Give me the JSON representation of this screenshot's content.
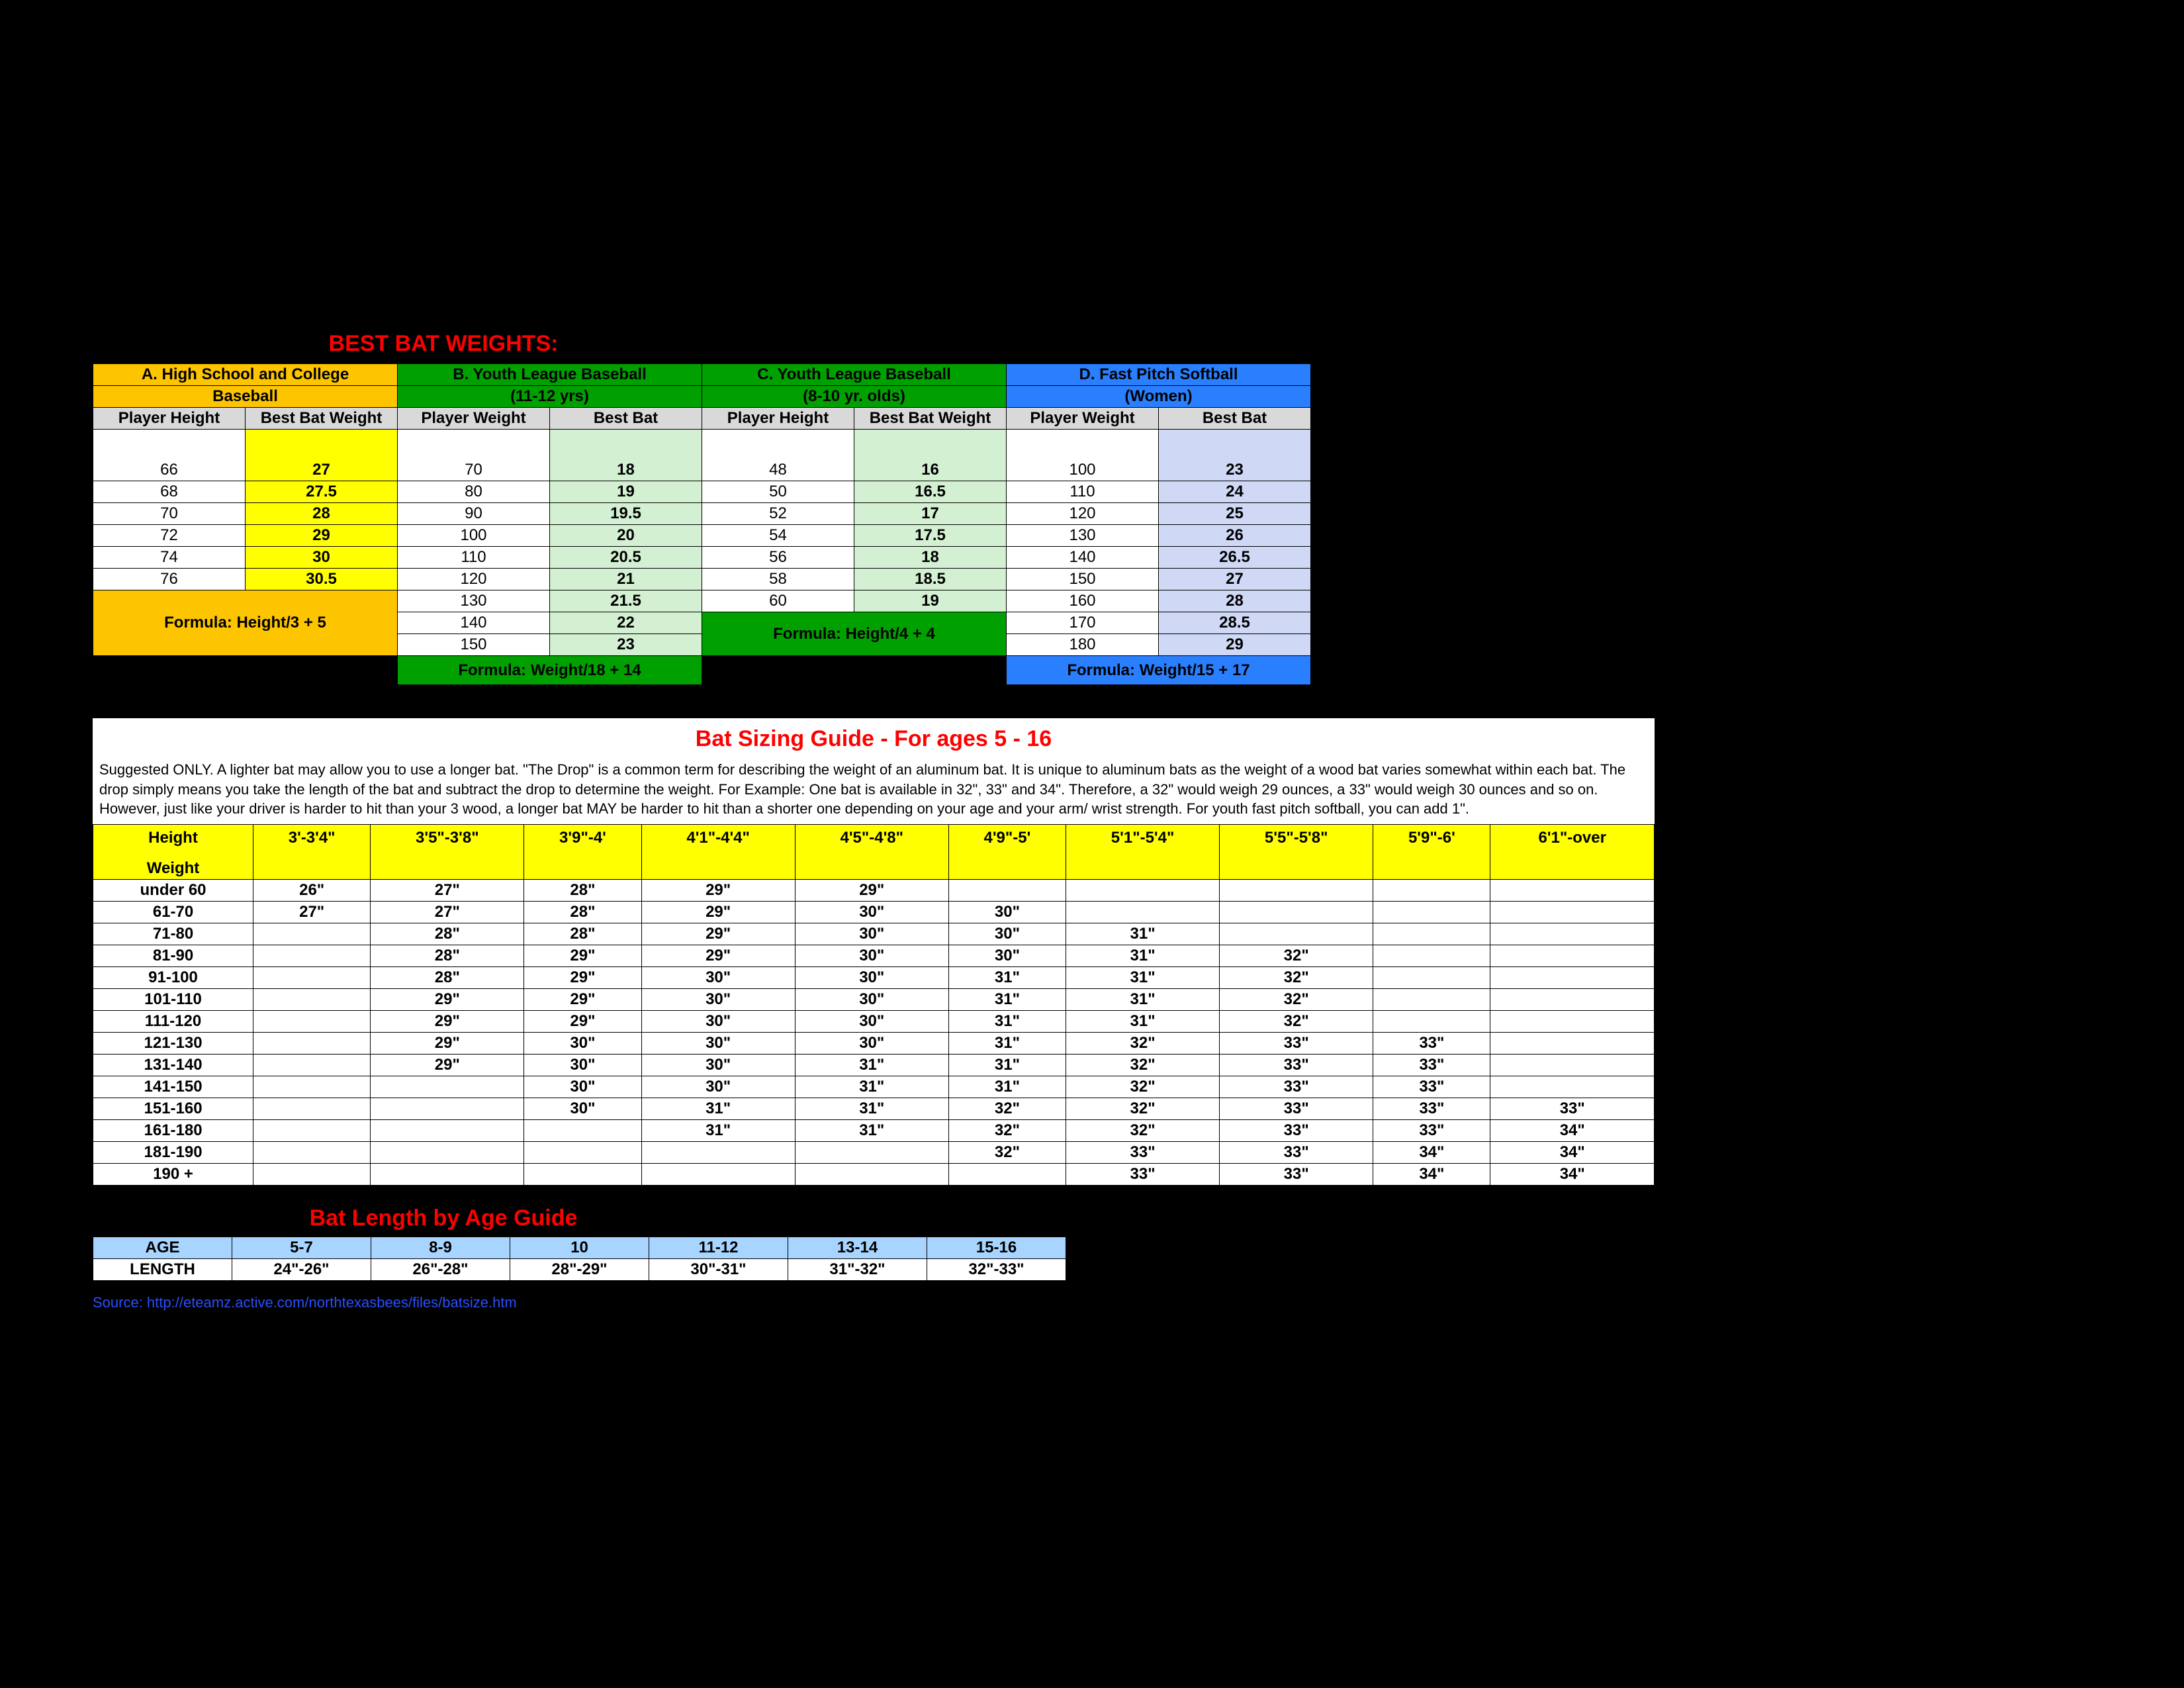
{
  "title_weights": "BEST BAT WEIGHTS:",
  "sections": {
    "A": {
      "label1": "A. High School and College",
      "label2": "Baseball",
      "col1": "Player Height",
      "col2": "Best Bat Weight",
      "formula": "Formula: Height/3 + 5"
    },
    "B": {
      "label1": "B. Youth League Baseball",
      "label2": "(11-12 yrs)",
      "col1": "Player Weight",
      "col2": "Best Bat",
      "formula": "Formula: Weight/18 + 14"
    },
    "C": {
      "label1": "C. Youth League Baseball",
      "label2": "(8-10 yr. olds)",
      "col1": "Player Height",
      "col2": "Best Bat Weight",
      "formula": "Formula: Height/4 + 4"
    },
    "D": {
      "label1": "D. Fast Pitch Softball",
      "label2": "(Women)",
      "col1": "Player Weight",
      "col2": "Best Bat",
      "formula": "Formula: Weight/15 + 17"
    }
  },
  "weightsA": [
    [
      "66",
      "27"
    ],
    [
      "68",
      "27.5"
    ],
    [
      "70",
      "28"
    ],
    [
      "72",
      "29"
    ],
    [
      "74",
      "30"
    ],
    [
      "76",
      "30.5"
    ]
  ],
  "weightsB": [
    [
      "70",
      "18"
    ],
    [
      "80",
      "19"
    ],
    [
      "90",
      "19.5"
    ],
    [
      "100",
      "20"
    ],
    [
      "110",
      "20.5"
    ],
    [
      "120",
      "21"
    ],
    [
      "130",
      "21.5"
    ],
    [
      "140",
      "22"
    ],
    [
      "150",
      "23"
    ]
  ],
  "weightsC": [
    [
      "48",
      "16"
    ],
    [
      "50",
      "16.5"
    ],
    [
      "52",
      "17"
    ],
    [
      "54",
      "17.5"
    ],
    [
      "56",
      "18"
    ],
    [
      "58",
      "18.5"
    ],
    [
      "60",
      "19"
    ]
  ],
  "weightsD": [
    [
      "100",
      "23"
    ],
    [
      "110",
      "24"
    ],
    [
      "120",
      "25"
    ],
    [
      "130",
      "26"
    ],
    [
      "140",
      "26.5"
    ],
    [
      "150",
      "27"
    ],
    [
      "160",
      "28"
    ],
    [
      "170",
      "28.5"
    ],
    [
      "180",
      "29"
    ]
  ],
  "guide_title": "Bat Sizing Guide - For ages 5 - 16",
  "guide_text": "Suggested ONLY. A lighter bat may allow you to use a longer bat. \"The Drop\" is a common term for describing the weight of an aluminum bat. It is unique to aluminum bats as the weight of a wood bat varies somewhat within each bat. The drop simply means you take the length of the bat and subtract the drop to determine the weight. For Example:  One bat is available in 32\", 33\" and 34\". Therefore, a 32\" would weigh 29 ounces, a 33\" would weigh 30 ounces and so on. However, just like your driver is harder to hit than your 3 wood, a longer bat MAY be harder to hit than a shorter one depending on your age and your arm/ wrist strength.  For youth fast pitch softball, you can add 1\".",
  "sizing_headers": [
    "Height",
    "3'-3'4\"",
    "3'5\"-3'8\"",
    "3'9\"-4'",
    "4'1\"-4'4\"",
    "4'5\"-4'8\"",
    "4'9\"-5'",
    "5'1\"-5'4\"",
    "5'5\"-5'8\"",
    "5'9\"-6'",
    "6'1\"-over"
  ],
  "sizing_header_sub": "Weight",
  "sizing_rows": [
    [
      "under 60",
      "26\"",
      "27\"",
      "28\"",
      "29\"",
      "29\"",
      "",
      "",
      "",
      "",
      ""
    ],
    [
      "61-70",
      "27\"",
      "27\"",
      "28\"",
      "29\"",
      "30\"",
      "30\"",
      "",
      "",
      "",
      ""
    ],
    [
      "71-80",
      "",
      "28\"",
      "28\"",
      "29\"",
      "30\"",
      "30\"",
      "31\"",
      "",
      "",
      ""
    ],
    [
      "81-90",
      "",
      "28\"",
      "29\"",
      "29\"",
      "30\"",
      "30\"",
      "31\"",
      "32\"",
      "",
      ""
    ],
    [
      "91-100",
      "",
      "28\"",
      "29\"",
      "30\"",
      "30\"",
      "31\"",
      "31\"",
      "32\"",
      "",
      ""
    ],
    [
      "101-110",
      "",
      "29\"",
      "29\"",
      "30\"",
      "30\"",
      "31\"",
      "31\"",
      "32\"",
      "",
      ""
    ],
    [
      "111-120",
      "",
      "29\"",
      "29\"",
      "30\"",
      "30\"",
      "31\"",
      "31\"",
      "32\"",
      "",
      ""
    ],
    [
      "121-130",
      "",
      "29\"",
      "30\"",
      "30\"",
      "30\"",
      "31\"",
      "32\"",
      "33\"",
      "33\"",
      ""
    ],
    [
      "131-140",
      "",
      "29\"",
      "30\"",
      "30\"",
      "31\"",
      "31\"",
      "32\"",
      "33\"",
      "33\"",
      ""
    ],
    [
      "141-150",
      "",
      "",
      "30\"",
      "30\"",
      "31\"",
      "31\"",
      "32\"",
      "33\"",
      "33\"",
      ""
    ],
    [
      "151-160",
      "",
      "",
      "30\"",
      "31\"",
      "31\"",
      "32\"",
      "32\"",
      "33\"",
      "33\"",
      "33\""
    ],
    [
      "161-180",
      "",
      "",
      "",
      "31\"",
      "31\"",
      "32\"",
      "32\"",
      "33\"",
      "33\"",
      "34\""
    ],
    [
      "181-190",
      "",
      "",
      "",
      "",
      "",
      "32\"",
      "33\"",
      "33\"",
      "34\"",
      "34\""
    ],
    [
      "190 +",
      "",
      "",
      "",
      "",
      "",
      "",
      "33\"",
      "33\"",
      "34\"",
      "34\""
    ]
  ],
  "age_title": "Bat Length by Age Guide",
  "age_headers": [
    "AGE",
    "5-7",
    "8-9",
    "10",
    "11-12",
    "13-14",
    "15-16"
  ],
  "age_row": [
    "LENGTH",
    "24\"-26\"",
    "26\"-28\"",
    "28\"-29\"",
    "30\"-31\"",
    "31\"-32\"",
    "32\"-33\""
  ],
  "source": "Source: http://eteamz.active.com/northtexasbees/files/batsize.htm",
  "colors": {
    "bg": "#000000",
    "title": "#ff0000",
    "hdr_yellow": "#fdc400",
    "hdr_green": "#00a000",
    "hdr_blue": "#2a7fff",
    "yellow": "#ffff00",
    "lgreen": "#d3f0d3",
    "lblue": "#cfd8f5",
    "gray": "#d9d9d9",
    "age_hdr": "#a8d5ff",
    "link": "#2a4fff"
  }
}
